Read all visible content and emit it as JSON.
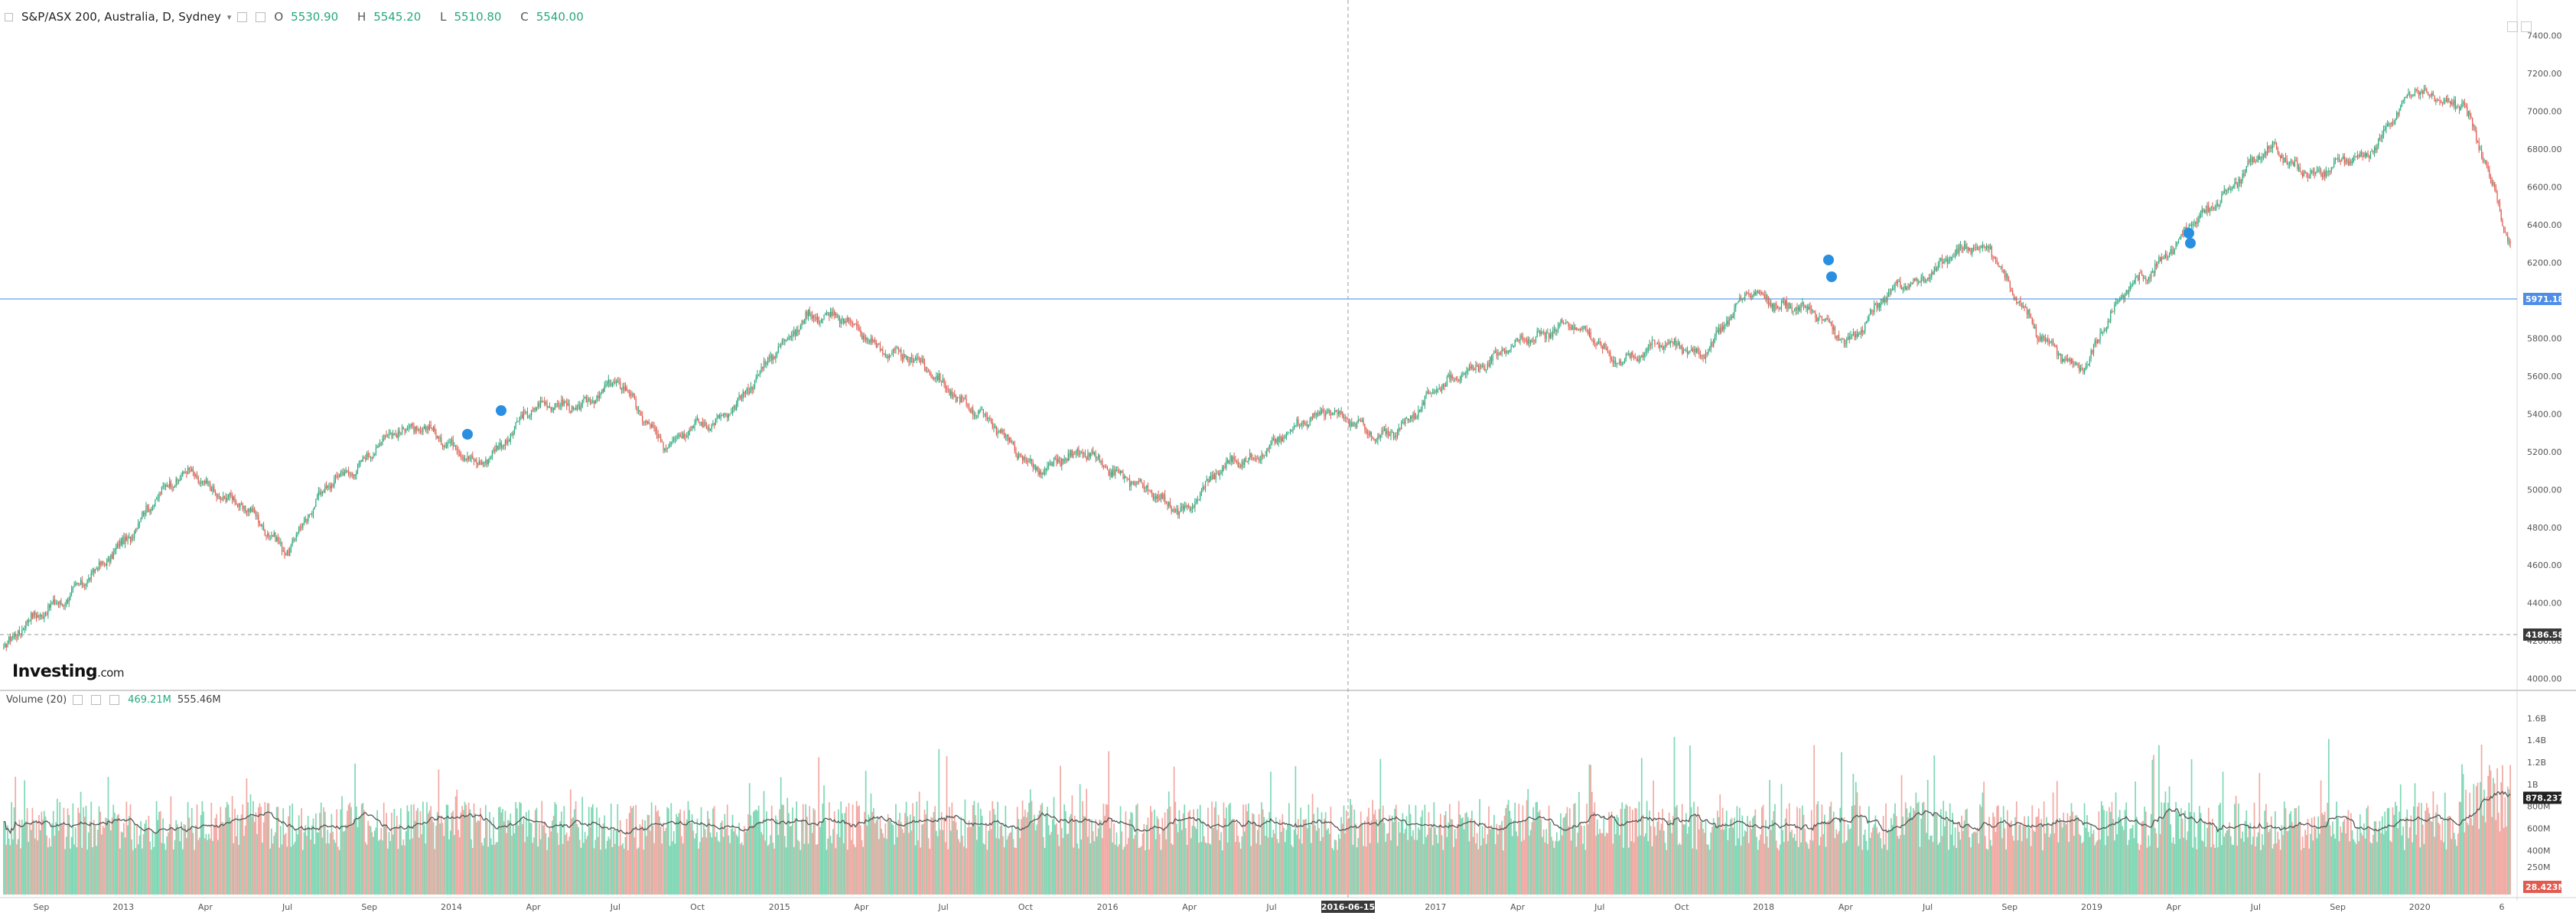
{
  "header": {
    "symbol": "S&P/ASX 200, Australia, D, Sydney",
    "open_label": "O",
    "open": "5530.90",
    "high_label": "H",
    "high": "5545.20",
    "low_label": "L",
    "low": "5510.80",
    "close_label": "C",
    "close": "5540.00"
  },
  "volume_header": {
    "label": "Volume (20)",
    "value1": "469.21M",
    "value2": "555.46M"
  },
  "logo": {
    "text": "Investing",
    "suffix": ".com"
  },
  "price_axis": {
    "ticks": [
      "7400.00",
      "7200.00",
      "7000.00",
      "6800.00",
      "6600.00",
      "6400.00",
      "6200.00",
      "6000.00",
      "5800.00",
      "5600.00",
      "5400.00",
      "5200.00",
      "5000.00",
      "4800.00",
      "4600.00",
      "4400.00",
      "4200.00",
      "4000.00"
    ]
  },
  "price_markers": {
    "current": "5971.18",
    "crosshair": "4186.58"
  },
  "volume_axis": {
    "ticks": [
      "1.6B",
      "1.4B",
      "1.2B",
      "1B",
      "800M",
      "600M",
      "400M",
      "250M"
    ],
    "current": "878.237M",
    "last": "28.423M"
  },
  "time_axis": {
    "labels": [
      "Sep",
      "2013",
      "Apr",
      "Jul",
      "Sep",
      "2014",
      "Apr",
      "Jul",
      "Oct",
      "2015",
      "Apr",
      "Jul",
      "Oct",
      "2016",
      "Apr",
      "Jul",
      "Oct",
      "2017",
      "Apr",
      "Jul",
      "Oct",
      "2018",
      "Apr",
      "Jul",
      "Sep",
      "2019",
      "Apr",
      "Jul",
      "Sep",
      "2020",
      "6"
    ],
    "crosshair_date": "2016-06-15"
  },
  "colors": {
    "up": "#26a97a",
    "down": "#e15a4f",
    "vol_up": "#7fd8b5",
    "vol_down": "#f2a9a3",
    "ma": "#555555",
    "price_line": "#4e8ee8"
  },
  "chart_data": {
    "type": "line",
    "title": "S&P/ASX 200, Australia, D, Sydney",
    "ylim": [
      3950,
      7500
    ],
    "x": [
      "2012-09",
      "2012-10",
      "2012-12",
      "2013-02",
      "2013-04",
      "2013-05",
      "2013-06",
      "2013-08",
      "2013-10",
      "2013-12",
      "2014-02",
      "2014-04",
      "2014-06",
      "2014-08",
      "2014-10",
      "2014-12",
      "2015-01",
      "2015-03",
      "2015-04",
      "2015-05",
      "2015-06",
      "2015-08",
      "2015-09",
      "2015-11",
      "2016-01",
      "2016-02",
      "2016-04",
      "2016-06",
      "2016-08",
      "2016-10",
      "2016-11",
      "2017-01",
      "2017-03",
      "2017-05",
      "2017-07",
      "2017-09",
      "2017-11",
      "2018-01",
      "2018-02",
      "2018-03",
      "2018-05",
      "2018-07",
      "2018-08",
      "2018-10",
      "2018-12",
      "2019-02",
      "2019-04",
      "2019-06",
      "2019-07",
      "2019-09",
      "2019-11",
      "2020-01",
      "2020-02",
      "2020-03"
    ],
    "series": [
      {
        "name": "Close",
        "values": [
          4150,
          4400,
          4550,
          4900,
          5100,
          4900,
          4700,
          5050,
          5250,
          5350,
          5100,
          5400,
          5450,
          5550,
          5250,
          5350,
          5600,
          5950,
          5850,
          5700,
          5550,
          5300,
          5100,
          5200,
          5000,
          4900,
          5150,
          5250,
          5450,
          5250,
          5450,
          5650,
          5750,
          5900,
          5700,
          5750,
          5750,
          6050,
          5950,
          5800,
          6050,
          6200,
          6300,
          5800,
          5650,
          6100,
          6300,
          6600,
          6800,
          6650,
          6800,
          7100,
          7050,
          6300
        ]
      }
    ],
    "volume_ylim": [
      0,
      1700000000
    ]
  }
}
